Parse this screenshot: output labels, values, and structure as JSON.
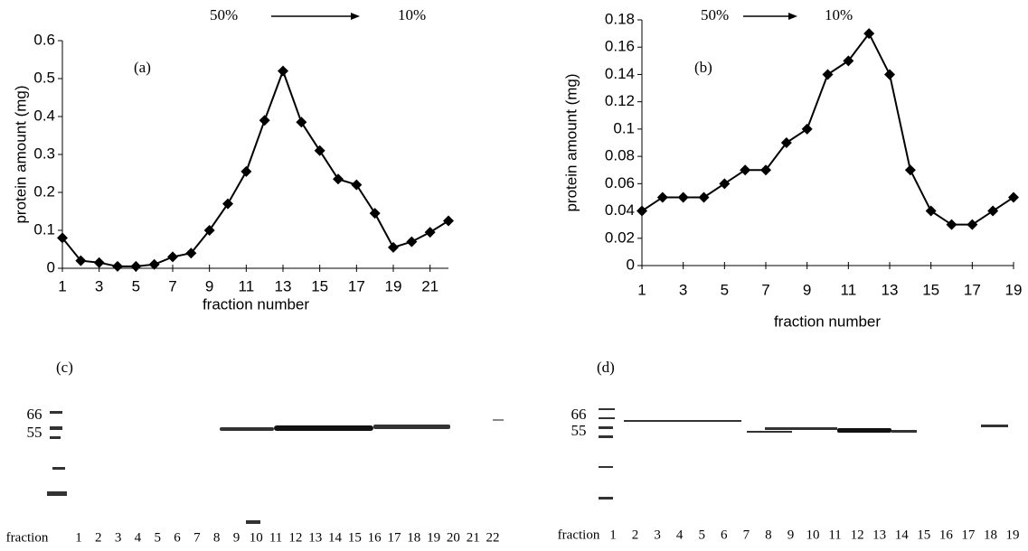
{
  "chart_data": [
    {
      "type": "line",
      "annotations": [
        "(a)",
        "50%",
        "10%"
      ],
      "xlabel": "fraction number",
      "ylabel": "protein amount (mg)",
      "x": [
        1,
        2,
        3,
        4,
        5,
        6,
        7,
        8,
        9,
        10,
        11,
        12,
        13,
        14,
        15,
        16,
        17,
        18,
        19,
        20,
        21,
        22
      ],
      "values": [
        0.08,
        0.02,
        0.015,
        0.005,
        0.005,
        0.01,
        0.03,
        0.04,
        0.1,
        0.17,
        0.255,
        0.39,
        0.52,
        0.385,
        0.31,
        0.235,
        0.22,
        0.145,
        0.055,
        0.07,
        0.095,
        0.125
      ],
      "color": "#000000",
      "xlim": [
        1,
        22
      ],
      "ylim": [
        0,
        0.6
      ],
      "xticks": [
        1,
        3,
        5,
        7,
        9,
        11,
        13,
        15,
        17,
        19,
        21
      ],
      "yticks": [
        0,
        0.1,
        0.2,
        0.3,
        0.4,
        0.5,
        0.6
      ]
    },
    {
      "type": "line",
      "annotations": [
        "(b)",
        "50%",
        "10%"
      ],
      "xlabel": "fraction number",
      "ylabel": "protein amount (mg)",
      "x": [
        1,
        2,
        3,
        4,
        5,
        6,
        7,
        8,
        9,
        10,
        11,
        12,
        13,
        14,
        15,
        16,
        17,
        18,
        19
      ],
      "values": [
        0.04,
        0.05,
        0.05,
        0.05,
        0.06,
        0.07,
        0.07,
        0.09,
        0.1,
        0.14,
        0.15,
        0.17,
        0.14,
        0.07,
        0.04,
        0.03,
        0.03,
        0.04,
        0.05
      ],
      "color": "#000000",
      "xlim": [
        1,
        19
      ],
      "ylim": [
        0,
        0.18
      ],
      "xticks": [
        1,
        3,
        5,
        7,
        9,
        11,
        13,
        15,
        17,
        19
      ],
      "yticks": [
        0,
        0.02,
        0.04,
        0.06,
        0.08,
        0.1,
        0.12,
        0.14,
        0.16,
        0.18
      ]
    }
  ],
  "gels": [
    {
      "label": "(c)",
      "markers": [
        "66",
        "55"
      ],
      "lane_title": "fraction",
      "lanes": [
        "1",
        "2",
        "3",
        "4",
        "5",
        "6",
        "7",
        "8",
        "9",
        "10",
        "11",
        "12",
        "13",
        "14",
        "15",
        "16",
        "17",
        "18",
        "19",
        "20",
        "21",
        "22"
      ]
    },
    {
      "label": "(d)",
      "markers": [
        "66",
        "55"
      ],
      "lane_title": "fraction",
      "lanes": [
        "1",
        "2",
        "3",
        "4",
        "5",
        "6",
        "7",
        "8",
        "9",
        "10",
        "11",
        "12",
        "13",
        "14",
        "15",
        "16",
        "17",
        "18",
        "19"
      ]
    }
  ]
}
